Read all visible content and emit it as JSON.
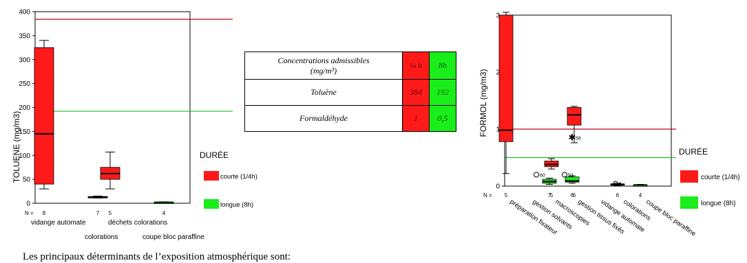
{
  "chart_data": [
    {
      "type": "box",
      "ylabel": "TOLUENE (mg/m3)",
      "ylim": [
        0,
        400
      ],
      "yticks": [
        0,
        50,
        100,
        150,
        200,
        250,
        300,
        350,
        400
      ],
      "n_prefix": "N =",
      "legend_title": "DURÉE",
      "legend": [
        {
          "label": "courte (1/4h)",
          "color": "#ff1a1a"
        },
        {
          "label": "longue (8h)",
          "color": "#1aee1a"
        }
      ],
      "reference_lines": [
        {
          "value": 384,
          "color": "#c0001a"
        },
        {
          "value": 192,
          "color": "#17c417"
        }
      ],
      "categories_upper": [
        "vidange automate",
        "déchets colorations"
      ],
      "categories_lower": [
        "colorations",
        "coupe bloc paraffine"
      ],
      "boxes": [
        {
          "group": 1,
          "duration": "courte",
          "n": "8",
          "min": 30,
          "q1": 40,
          "median": 145,
          "q3": 325,
          "max": 340,
          "color": "#ff1a1a"
        },
        {
          "group": 2,
          "duration": "longue",
          "n": "7",
          "min": 11,
          "q1": 12,
          "median": 13,
          "q3": 14,
          "max": 15,
          "color": "#1aee1a"
        },
        {
          "group": 3,
          "duration": "courte",
          "n": "5",
          "min": 30,
          "q1": 50,
          "median": 62,
          "q3": 75,
          "max": 107,
          "color": "#ff1a1a"
        },
        {
          "group": 4,
          "duration": "longue",
          "n": "4",
          "min": 1,
          "q1": 1,
          "median": 2,
          "q3": 2,
          "max": 3,
          "color": "#1aee1a"
        }
      ]
    },
    {
      "type": "box",
      "ylabel": "FORMOL (mg/m3)",
      "ylim": [
        0,
        3
      ],
      "yticks": [
        0,
        1,
        2,
        3
      ],
      "n_prefix": "N =",
      "legend_title": "DURÉE",
      "legend": [
        {
          "label": "courte (1/4h)",
          "color": "#ff1a1a"
        },
        {
          "label": "longue (8h)",
          "color": "#1aee1a"
        }
      ],
      "reference_lines": [
        {
          "value": 1.0,
          "color": "#c0001a"
        },
        {
          "value": 0.5,
          "color": "#17c417"
        }
      ],
      "categories": [
        "préparation fixateur",
        "gestion solvants",
        "macroscopies",
        "gestion tissus fixés",
        "vidange automate",
        "colorations",
        "coupe bloc paraffine"
      ],
      "boxes": [
        {
          "group": 1,
          "duration": "courte",
          "n": "5",
          "min": 0.22,
          "q1": 0.78,
          "median": 0.98,
          "q3": 3.0,
          "max": 3.05,
          "color": "#ff1a1a"
        },
        {
          "group": 2,
          "duration": "longue",
          "n": "7",
          "min": 0.03,
          "q1": 0.05,
          "median": 0.08,
          "q3": 0.12,
          "max": 0.14,
          "color": "#1aee1a"
        },
        {
          "group": 3,
          "duration": "longue",
          "n": "6",
          "min": 0.05,
          "q1": 0.07,
          "median": 0.09,
          "q3": 0.16,
          "max": 0.18,
          "color": "#1aee1a"
        },
        {
          "group": 3,
          "duration": "courte",
          "n": "5",
          "min": 0.3,
          "q1": 0.34,
          "median": 0.38,
          "q3": 0.44,
          "max": 0.48,
          "color": "#ff1a1a"
        },
        {
          "group": 4,
          "duration": "courte",
          "n": "6",
          "min": 0.76,
          "q1": 1.07,
          "median": 1.25,
          "q3": 1.38,
          "max": 1.4,
          "color": "#ff1a1a"
        },
        {
          "group": 5,
          "duration": "longue",
          "n": "6",
          "min": 0.01,
          "q1": 0.02,
          "median": 0.03,
          "q3": 0.04,
          "max": 0.05,
          "color": "#1aee1a"
        },
        {
          "group": 6,
          "duration": "longue",
          "n": "4",
          "min": 0.0,
          "q1": 0.01,
          "median": 0.02,
          "q3": 0.02,
          "max": 0.03,
          "color": "#1aee1a"
        }
      ],
      "outliers": [
        {
          "group": 2,
          "value": 0.2,
          "label": "60",
          "marker": "circle"
        },
        {
          "group": 3,
          "value": 0.85,
          "label": "56",
          "marker": "star"
        },
        {
          "group": 3,
          "value": 0.2,
          "label": "53",
          "marker": "circle"
        },
        {
          "group": 5,
          "value": 0.04,
          "label": "6",
          "marker": "circle"
        }
      ]
    }
  ],
  "limits_table": {
    "header_label": "Concentrations admissibles",
    "header_unit": "(mg/m³)",
    "col_short": "¼ h",
    "col_long": "8h",
    "rows": [
      {
        "name": "Toluène",
        "short": "384",
        "long": "192"
      },
      {
        "name": "Formaldéhyde",
        "short": "1",
        "long": "0,5"
      }
    ]
  },
  "footer_text": "Les principaux déterminants de l’exposition atmosphérique sont:"
}
